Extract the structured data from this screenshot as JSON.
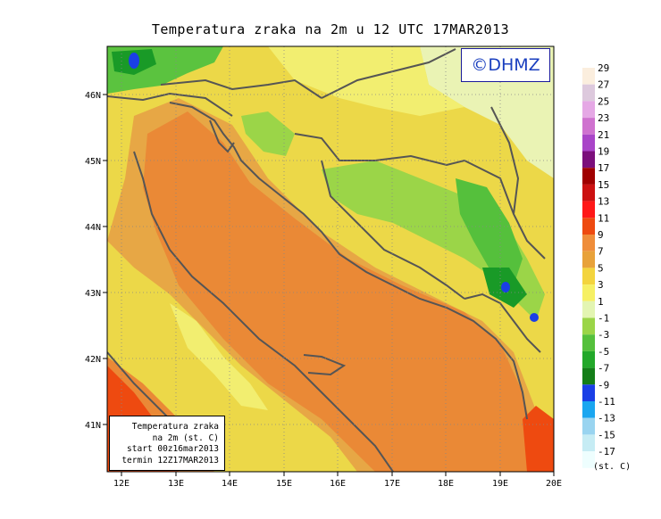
{
  "title": "Temperatura zraka na 2m u 12 UTC 17MAR2013",
  "logo": "©DHMZ",
  "info_box": {
    "line1": "Temperatura zraka",
    "line2": "na 2m (st. C)",
    "line3": "start 00z16mar2013",
    "line4": "termin 12Z17MAR2013"
  },
  "x_ticks": [
    "12E",
    "13E",
    "14E",
    "15E",
    "16E",
    "17E",
    "18E",
    "19E",
    "20E"
  ],
  "y_ticks": [
    "46N",
    "45N",
    "44N",
    "43N",
    "42N",
    "41N"
  ],
  "legend": {
    "labels": [
      "29",
      "27",
      "25",
      "23",
      "21",
      "19",
      "17",
      "15",
      "13",
      "11",
      "9",
      "7",
      "5",
      "3",
      "1",
      "-1",
      "-3",
      "-5",
      "-7",
      "-9",
      "-11",
      "-13",
      "-15",
      "-17"
    ],
    "colors": [
      "#fbeede",
      "#ddc9dd",
      "#e5a8e5",
      "#cf72cf",
      "#a945c8",
      "#7b0f7b",
      "#a00000",
      "#cc1111",
      "#ff1818",
      "#ee4a10",
      "#ef8d3a",
      "#e8a23a",
      "#f3d43e",
      "#f6f064",
      "#e3f5b2",
      "#9bd548",
      "#55c03c",
      "#23a82a",
      "#147e18",
      "#1a3fe6",
      "#1aa6f0",
      "#99d4f0",
      "#c6ecf4",
      "#eefefe"
    ],
    "units": "(st. C)"
  },
  "colors": {
    "sea": "#ea8936",
    "coast_sea": "#e7a745",
    "land_warm": "#ecd848",
    "land_cool": "#f2ee70",
    "land_pale": "#eaf3b4",
    "green": "#5bc33f",
    "dark_green": "#199a27",
    "red_orange": "#ee4a10",
    "border": "#555555"
  }
}
